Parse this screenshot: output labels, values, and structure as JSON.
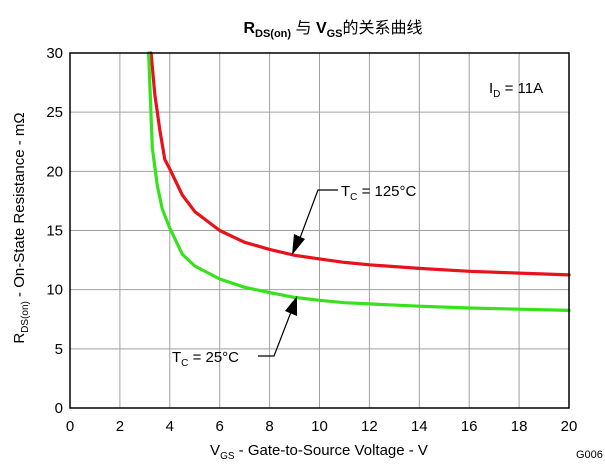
{
  "chart_data": {
    "type": "line",
    "title": {
      "param1_main": "R",
      "param1_sub": "DS(on)",
      "connector": " 与 ",
      "param2_main": "V",
      "param2_sub": "GS",
      "tail": "的关系曲线"
    },
    "xlabel": {
      "main": "V",
      "sub": "GS",
      "rest": " - Gate-to-Source Voltage - V"
    },
    "ylabel": {
      "main": "R",
      "sub": "DS(on)",
      "rest": " - On-State Resistance - mΩ"
    },
    "xlim": [
      0,
      20
    ],
    "ylim": [
      0,
      30
    ],
    "x_ticks": [
      0,
      2,
      4,
      6,
      8,
      10,
      12,
      14,
      16,
      18,
      20
    ],
    "y_ticks": [
      0,
      5,
      10,
      15,
      20,
      25,
      30
    ],
    "grid": true,
    "condition": {
      "main": "I",
      "sub": "D",
      "rest": " = 11A"
    },
    "figure_code": "G006",
    "series": [
      {
        "label": {
          "main": "T",
          "sub": "C",
          "rest": " = 125°C"
        },
        "color": "#e8121b",
        "x": [
          3.25,
          3.4,
          3.6,
          3.8,
          4.0,
          4.5,
          5.0,
          6.0,
          7.0,
          8.0,
          9.0,
          10.0,
          11.0,
          12.0,
          14.0,
          16.0,
          18.0,
          20.0
        ],
        "y": [
          30.0,
          26.5,
          23.5,
          21.0,
          20.2,
          18.0,
          16.6,
          15.0,
          14.0,
          13.4,
          12.9,
          12.6,
          12.3,
          12.1,
          11.8,
          11.55,
          11.4,
          11.25
        ]
      },
      {
        "label": {
          "main": "T",
          "sub": "C",
          "rest": " = 25°C"
        },
        "color": "#37e21c",
        "x": [
          3.15,
          3.3,
          3.5,
          3.7,
          4.0,
          4.5,
          5.0,
          6.0,
          7.0,
          8.0,
          9.0,
          10.0,
          11.0,
          12.0,
          14.0,
          16.0,
          18.0,
          20.0
        ],
        "y": [
          30.0,
          22.0,
          18.8,
          16.8,
          15.2,
          13.0,
          12.0,
          10.9,
          10.2,
          9.75,
          9.35,
          9.1,
          8.9,
          8.8,
          8.6,
          8.45,
          8.35,
          8.25
        ]
      }
    ]
  }
}
